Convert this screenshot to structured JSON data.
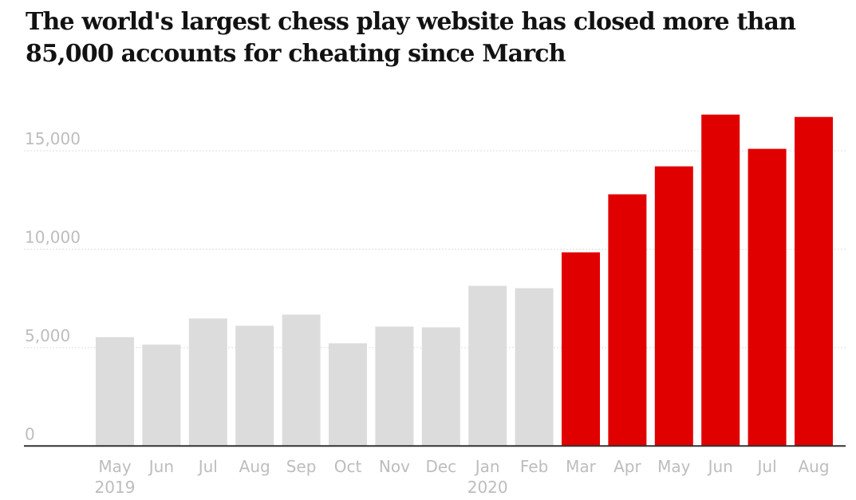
{
  "chart_data": {
    "type": "bar",
    "title": "The world's largest chess play website has closed more than 85,000 accounts for cheating since March",
    "categories": [
      "May 2019",
      "Jun",
      "Jul",
      "Aug",
      "Sep",
      "Oct",
      "Nov",
      "Dec",
      "Jan 2020",
      "Feb",
      "Mar",
      "Apr",
      "May",
      "Jun",
      "Jul",
      "Aug"
    ],
    "category_labels": [
      [
        "May",
        "2019"
      ],
      [
        "Jun"
      ],
      [
        "Jul"
      ],
      [
        "Aug"
      ],
      [
        "Sep"
      ],
      [
        "Oct"
      ],
      [
        "Nov"
      ],
      [
        "Dec"
      ],
      [
        "Jan",
        "2020"
      ],
      [
        "Feb"
      ],
      [
        "Mar"
      ],
      [
        "Apr"
      ],
      [
        "May"
      ],
      [
        "Jun"
      ],
      [
        "Jul"
      ],
      [
        "Aug"
      ]
    ],
    "values": [
      5530,
      5150,
      6480,
      6110,
      6680,
      5220,
      6070,
      6030,
      8140,
      8020,
      9840,
      12790,
      14210,
      16840,
      15100,
      16720
    ],
    "colors": [
      "#dcdcdc",
      "#dcdcdc",
      "#dcdcdc",
      "#dcdcdc",
      "#dcdcdc",
      "#dcdcdc",
      "#dcdcdc",
      "#dcdcdc",
      "#dcdcdc",
      "#dcdcdc",
      "#e00000",
      "#e00000",
      "#e00000",
      "#e00000",
      "#e00000",
      "#e00000"
    ],
    "yticks": [
      0,
      5000,
      10000,
      15000
    ],
    "ytick_labels": [
      "0",
      "5,000",
      "10,000",
      "15,000"
    ],
    "ylim": [
      0,
      17500
    ],
    "grid": true,
    "xlabel": "",
    "ylabel": ""
  }
}
